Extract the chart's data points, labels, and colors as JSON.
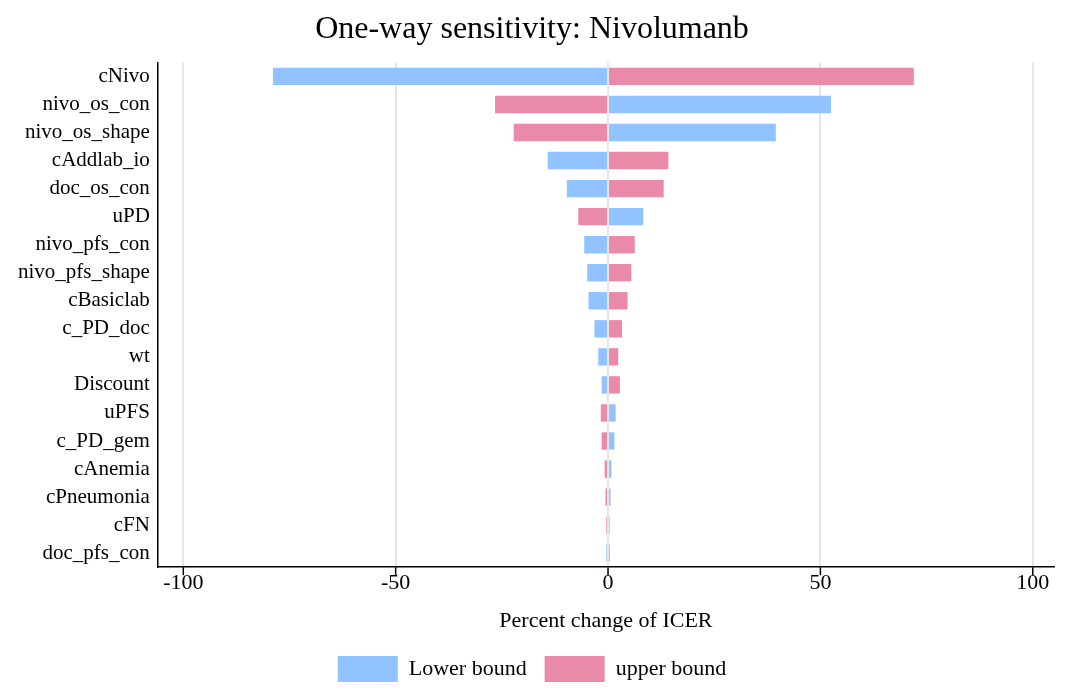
{
  "chart_data": {
    "type": "bar",
    "orientation": "horizontal",
    "title": "One-way sensitivity: Nivolumanb",
    "xlabel": "Percent change of ICER",
    "categories": [
      "cNivo",
      "nivo_os_con",
      "nivo_os_shape",
      "cAddlab_io",
      "doc_os_con",
      "uPD",
      "nivo_pfs_con",
      "nivo_pfs_shape",
      "cBasiclab",
      "c_PD_doc",
      "wt",
      "Discount",
      "uPFS",
      "c_PD_gem",
      "cAnemia",
      "cPneumonia",
      "cFN",
      "doc_pfs_con"
    ],
    "series": [
      {
        "name": "Lower bound",
        "color": "#90c3ff",
        "values": [
          -78.9,
          52.5,
          39.5,
          -14.2,
          -9.7,
          8.3,
          -5.6,
          -4.9,
          -4.6,
          -3.2,
          -2.3,
          -1.5,
          1.8,
          1.5,
          0.8,
          0.6,
          0.4,
          -0.4
        ]
      },
      {
        "name": "upper bound",
        "color": "#e88aa8",
        "values": [
          72,
          -26.6,
          -22.2,
          14.2,
          13.1,
          -7.0,
          6.3,
          5.5,
          4.6,
          3.3,
          2.4,
          2.8,
          -1.7,
          -1.5,
          -0.8,
          -0.6,
          -0.4,
          0.4
        ]
      }
    ],
    "xlim": [
      -106,
      105
    ],
    "xticks": [
      -100,
      -50,
      0,
      50,
      100
    ],
    "grid": "x",
    "legend": "bottom",
    "stacked": true
  }
}
